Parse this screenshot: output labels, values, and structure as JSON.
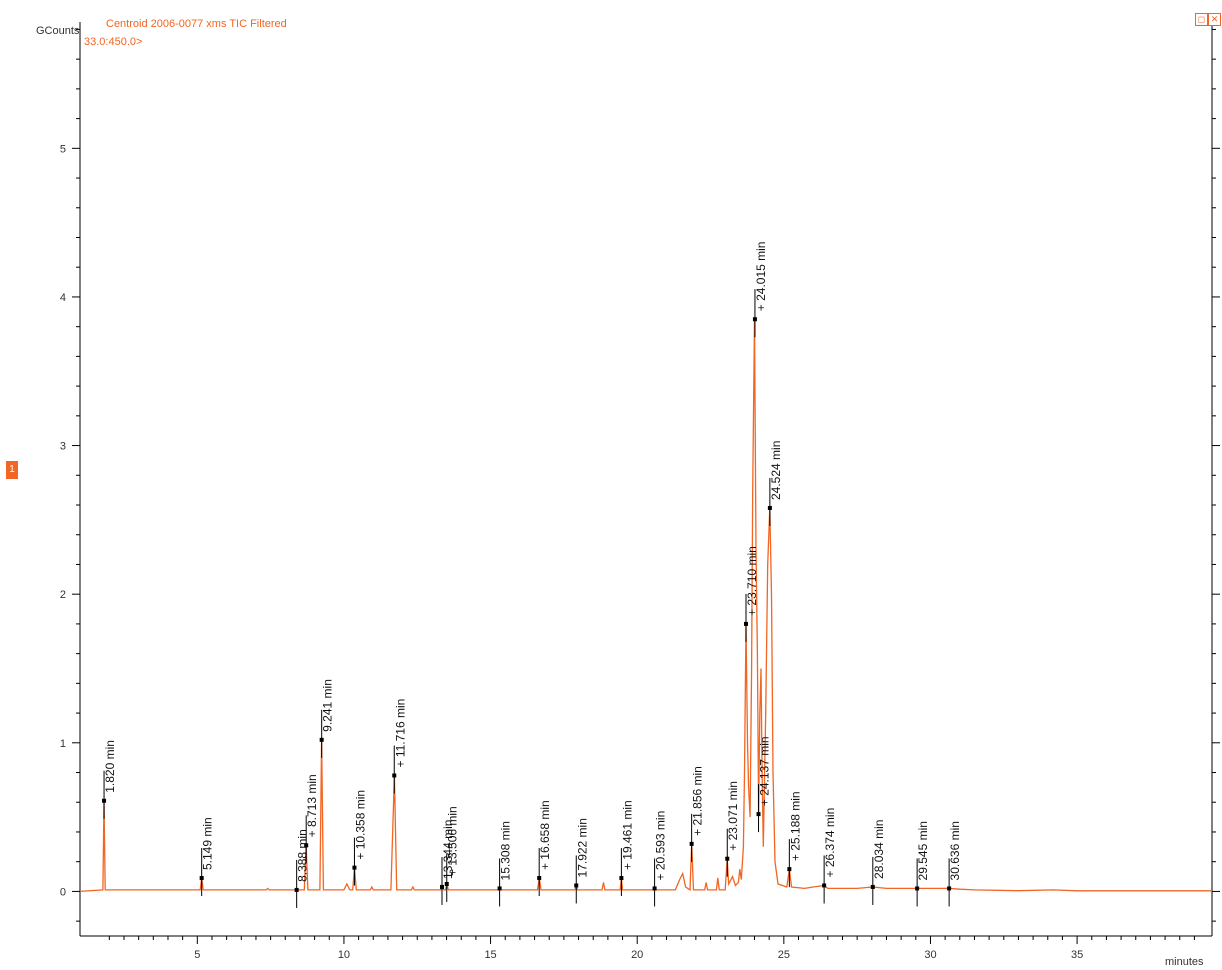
{
  "chart_data": {
    "type": "line",
    "title": "Centroid 2006-0077 xms TIC Filtered",
    "subtitle": "33.0:450.0>",
    "ylabel": "GCounts",
    "xlabel": "minutes",
    "xlim": [
      1.0,
      39.6
    ],
    "ylim": [
      -0.3,
      5.85
    ],
    "x_ticks": [
      5,
      10,
      15,
      20,
      25,
      30,
      35
    ],
    "y_ticks": [
      0,
      1,
      2,
      3,
      4,
      5
    ],
    "series": [
      {
        "color": "#f26522",
        "points": [
          [
            1.0,
            0
          ],
          [
            1.78,
            0.01
          ],
          [
            1.82,
            0.61
          ],
          [
            1.86,
            0.01
          ],
          [
            5.1,
            0.01
          ],
          [
            5.15,
            0.09
          ],
          [
            5.2,
            0.01
          ],
          [
            7.35,
            0.01
          ],
          [
            7.4,
            0.02
          ],
          [
            7.45,
            0.01
          ],
          [
            8.65,
            0.01
          ],
          [
            8.71,
            0.31
          ],
          [
            8.77,
            0.01
          ],
          [
            9.18,
            0.01
          ],
          [
            9.24,
            1.02
          ],
          [
            9.3,
            0.01
          ],
          [
            10.0,
            0.01
          ],
          [
            10.1,
            0.05
          ],
          [
            10.2,
            0.01
          ],
          [
            10.3,
            0.01
          ],
          [
            10.36,
            0.16
          ],
          [
            10.42,
            0.01
          ],
          [
            10.9,
            0.01
          ],
          [
            10.95,
            0.03
          ],
          [
            11.0,
            0.01
          ],
          [
            11.6,
            0.01
          ],
          [
            11.72,
            0.78
          ],
          [
            11.8,
            0.01
          ],
          [
            12.3,
            0.01
          ],
          [
            12.35,
            0.03
          ],
          [
            12.4,
            0.01
          ],
          [
            13.3,
            0.01
          ],
          [
            13.34,
            0.03
          ],
          [
            13.4,
            0.01
          ],
          [
            13.46,
            0.01
          ],
          [
            13.51,
            0.05
          ],
          [
            13.56,
            0.01
          ],
          [
            15.26,
            0.01
          ],
          [
            15.31,
            0.02
          ],
          [
            15.36,
            0.01
          ],
          [
            16.6,
            0.01
          ],
          [
            16.66,
            0.09
          ],
          [
            16.72,
            0.01
          ],
          [
            17.88,
            0.01
          ],
          [
            17.92,
            0.04
          ],
          [
            17.96,
            0.01
          ],
          [
            18.8,
            0.01
          ],
          [
            18.85,
            0.06
          ],
          [
            18.9,
            0.01
          ],
          [
            19.42,
            0.01
          ],
          [
            19.46,
            0.09
          ],
          [
            19.5,
            0.01
          ],
          [
            20.55,
            0.01
          ],
          [
            20.59,
            0.02
          ],
          [
            20.63,
            0.01
          ],
          [
            21.3,
            0.01
          ],
          [
            21.45,
            0.08
          ],
          [
            21.55,
            0.12
          ],
          [
            21.65,
            0.03
          ],
          [
            21.8,
            0.01
          ],
          [
            21.86,
            0.32
          ],
          [
            21.92,
            0.01
          ],
          [
            22.3,
            0.01
          ],
          [
            22.35,
            0.06
          ],
          [
            22.4,
            0.01
          ],
          [
            22.7,
            0.01
          ],
          [
            22.75,
            0.09
          ],
          [
            22.8,
            0.01
          ],
          [
            23.0,
            0.01
          ],
          [
            23.07,
            0.22
          ],
          [
            23.12,
            0.05
          ],
          [
            23.25,
            0.1
          ],
          [
            23.35,
            0.04
          ],
          [
            23.45,
            0.06
          ],
          [
            23.5,
            0.15
          ],
          [
            23.55,
            0.08
          ],
          [
            23.62,
            0.3
          ],
          [
            23.66,
            0.8
          ],
          [
            23.71,
            1.8
          ],
          [
            23.76,
            1.0
          ],
          [
            23.8,
            0.7
          ],
          [
            23.85,
            0.5
          ],
          [
            23.9,
            1.5
          ],
          [
            23.94,
            2.7
          ],
          [
            24.0,
            3.85
          ],
          [
            24.05,
            2.3
          ],
          [
            24.1,
            1.6
          ],
          [
            24.14,
            0.52
          ],
          [
            24.18,
            1.2
          ],
          [
            24.22,
            1.5
          ],
          [
            24.26,
            0.8
          ],
          [
            24.3,
            0.3
          ],
          [
            24.38,
            1.2
          ],
          [
            24.45,
            2.2
          ],
          [
            24.52,
            2.58
          ],
          [
            24.58,
            2.0
          ],
          [
            24.63,
            0.8
          ],
          [
            24.7,
            0.2
          ],
          [
            24.8,
            0.05
          ],
          [
            25.1,
            0.03
          ],
          [
            25.19,
            0.15
          ],
          [
            25.26,
            0.03
          ],
          [
            25.7,
            0.02
          ],
          [
            26.0,
            0.03
          ],
          [
            26.37,
            0.04
          ],
          [
            26.5,
            0.02
          ],
          [
            27.5,
            0.02
          ],
          [
            28.03,
            0.03
          ],
          [
            28.5,
            0.02
          ],
          [
            29.54,
            0.02
          ],
          [
            30.0,
            0.02
          ],
          [
            30.64,
            0.02
          ],
          [
            31.0,
            0.015
          ],
          [
            31.5,
            0.01
          ],
          [
            33.0,
            0.005
          ],
          [
            34.2,
            0.01
          ],
          [
            35.0,
            0.004
          ],
          [
            39.6,
            0.004
          ]
        ]
      }
    ],
    "peak_labels": [
      {
        "x": 1.82,
        "y": 0.61,
        "text": "1.820 min"
      },
      {
        "x": 5.149,
        "y": 0.09,
        "text": "5.149 min"
      },
      {
        "x": 8.388,
        "y": 0.01,
        "text": "8.388 min"
      },
      {
        "x": 8.713,
        "y": 0.31,
        "text": "+ 8.713 min"
      },
      {
        "x": 9.241,
        "y": 1.02,
        "text": "9.241 min"
      },
      {
        "x": 10.358,
        "y": 0.16,
        "text": "+ 10.358 min"
      },
      {
        "x": 11.716,
        "y": 0.78,
        "text": "+ 11.716 min"
      },
      {
        "x": 13.344,
        "y": 0.03,
        "text": "13.344 min"
      },
      {
        "x": 13.506,
        "y": 0.05,
        "text": "+ 13.506 min"
      },
      {
        "x": 15.308,
        "y": 0.02,
        "text": "15.308 min"
      },
      {
        "x": 16.658,
        "y": 0.09,
        "text": "+ 16.658 min"
      },
      {
        "x": 17.922,
        "y": 0.04,
        "text": "17.922 min"
      },
      {
        "x": 19.461,
        "y": 0.09,
        "text": "+ 19.461 min"
      },
      {
        "x": 20.593,
        "y": 0.02,
        "text": "+ 20.593 min"
      },
      {
        "x": 21.856,
        "y": 0.32,
        "text": "+ 21.856 min"
      },
      {
        "x": 23.071,
        "y": 0.22,
        "text": "+ 23.071 min"
      },
      {
        "x": 23.71,
        "y": 1.8,
        "text": "+ 23.710 min"
      },
      {
        "x": 24.015,
        "y": 3.85,
        "text": "+ 24.015 min"
      },
      {
        "x": 24.137,
        "y": 0.52,
        "text": "+ 24.137 min"
      },
      {
        "x": 24.524,
        "y": 2.58,
        "text": "24.524 min"
      },
      {
        "x": 25.188,
        "y": 0.15,
        "text": "+ 25.188 min"
      },
      {
        "x": 26.374,
        "y": 0.04,
        "text": "+ 26.374 min"
      },
      {
        "x": 28.034,
        "y": 0.03,
        "text": "28.034 min"
      },
      {
        "x": 29.545,
        "y": 0.02,
        "text": "29.545 min"
      },
      {
        "x": 30.636,
        "y": 0.02,
        "text": "30.636 min"
      }
    ],
    "grid": false
  },
  "side_badge": "1",
  "window_buttons": {
    "restore": "◻",
    "close": "✕"
  }
}
